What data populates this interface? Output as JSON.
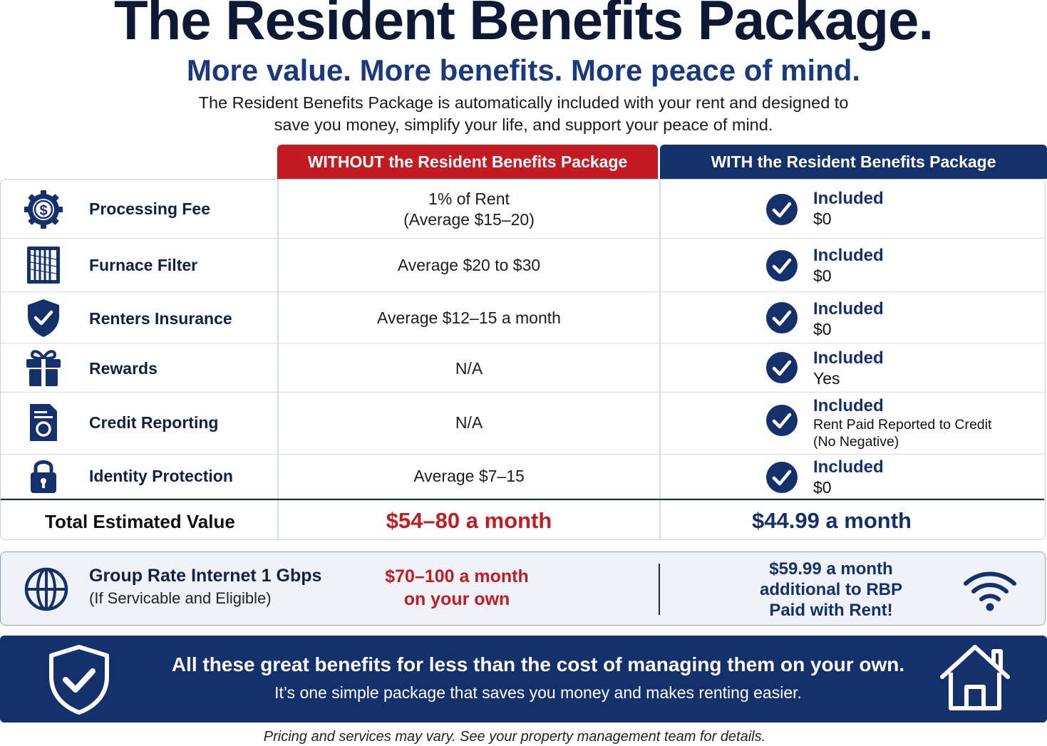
{
  "header": {
    "title": "The Resident Benefits Package.",
    "subtitle": "More value. More benefits. More peace of mind.",
    "intro_line1": "The Resident Benefits Package is automatically included with your rent and designed to",
    "intro_line2": "save you money, simplify your life, and support your peace of mind."
  },
  "columns": {
    "without": "WITHOUT the Resident Benefits Package",
    "with": "WITH the Resident Benefits Package"
  },
  "rows": [
    {
      "icon": "dollar-gear-icon",
      "label": "Processing Fee",
      "without_line1": "1% of Rent",
      "without_line2": "(Average $15–20)",
      "with_main": "Included",
      "with_sub": "$0"
    },
    {
      "icon": "furnace-filter-icon",
      "label": "Furnace Filter",
      "without_line1": "Average $20 to $30",
      "with_main": "Included",
      "with_sub": "$0"
    },
    {
      "icon": "shield-check-icon",
      "label": "Renters Insurance",
      "without_line1": "Average $12–15 a month",
      "with_main": "Included",
      "with_sub": "$0"
    },
    {
      "icon": "gift-icon",
      "label": "Rewards",
      "without_line1": "N/A",
      "with_main": "Included",
      "with_sub": "Yes"
    },
    {
      "icon": "credit-report-icon",
      "label": "Credit Reporting",
      "without_line1": "N/A",
      "with_main": "Included",
      "with_sub": "Rent Paid Reported to Credit",
      "with_sub2": "(No Negative)"
    },
    {
      "icon": "padlock-icon",
      "label": "Identity Protection",
      "without_line1": "Average $7–15",
      "with_main": "Included",
      "with_sub": "$0"
    }
  ],
  "total": {
    "label": "Total Estimated Value",
    "without": "$54–80 a month",
    "with": "$44.99 a month"
  },
  "internet": {
    "icon": "globe-icon",
    "label": "Group Rate Internet 1 Gbps",
    "sublabel": "(If Servicable and Eligible)",
    "without_line1": "$70–100 a month",
    "without_line2": "on your own",
    "with_line1": "$59.99 a month",
    "with_line2": "additional to RBP",
    "with_line3": "Paid with Rent!"
  },
  "banner": {
    "main": "All these great benefits for less than the cost of managing them on your own.",
    "sub": "It’s one simple package that saves you money and makes renting easier."
  },
  "footnote": "Pricing and services may vary. See your property management team for details.",
  "colors": {
    "navy": "#15316b",
    "red": "#c41a22"
  }
}
